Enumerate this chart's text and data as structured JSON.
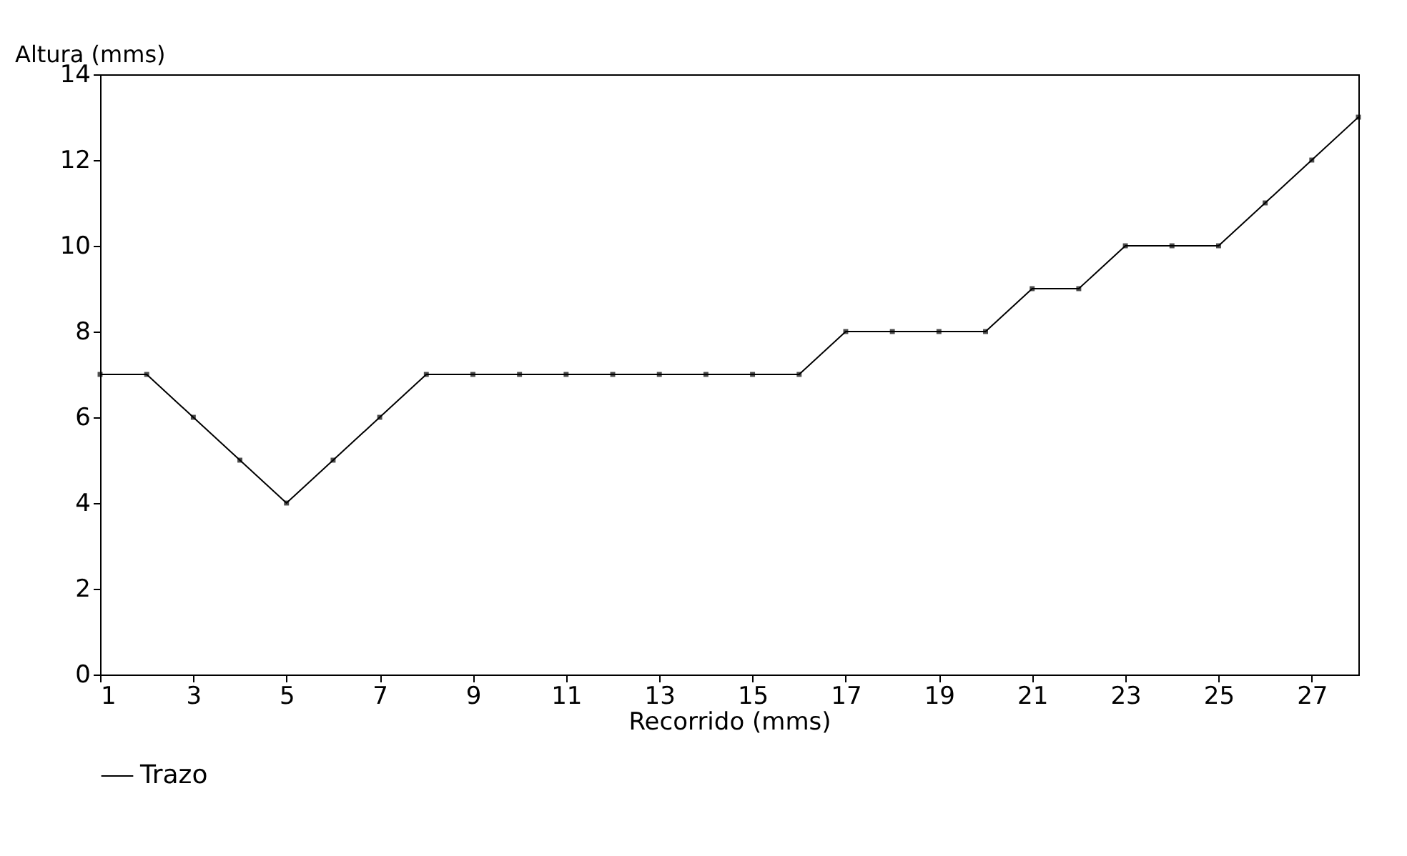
{
  "chart_data": {
    "type": "line",
    "xlabel": "Recorrido (mms)",
    "ylabel": "Altura (mms)",
    "x": [
      1,
      2,
      3,
      4,
      5,
      6,
      7,
      8,
      9,
      10,
      11,
      12,
      13,
      14,
      15,
      16,
      17,
      18,
      19,
      20,
      21,
      22,
      23,
      24,
      25,
      26,
      27,
      28
    ],
    "series": [
      {
        "name": "Trazo",
        "color": "#000000",
        "values": [
          7,
          7,
          6,
          5,
          4,
          5,
          6,
          7,
          7,
          7,
          7,
          7,
          7,
          7,
          7,
          7,
          8,
          8,
          8,
          8,
          9,
          9,
          10,
          10,
          10,
          11,
          12,
          13
        ]
      }
    ],
    "xlim": [
      1,
      28
    ],
    "xticks": [
      1,
      3,
      5,
      7,
      9,
      11,
      13,
      15,
      17,
      19,
      21,
      23,
      25,
      27
    ],
    "ylim": [
      0,
      14
    ],
    "yticks": [
      0,
      2,
      4,
      6,
      8,
      10,
      12,
      14
    ],
    "grid": false,
    "legend": "bottom",
    "marker": "square",
    "line_style": "solid"
  }
}
